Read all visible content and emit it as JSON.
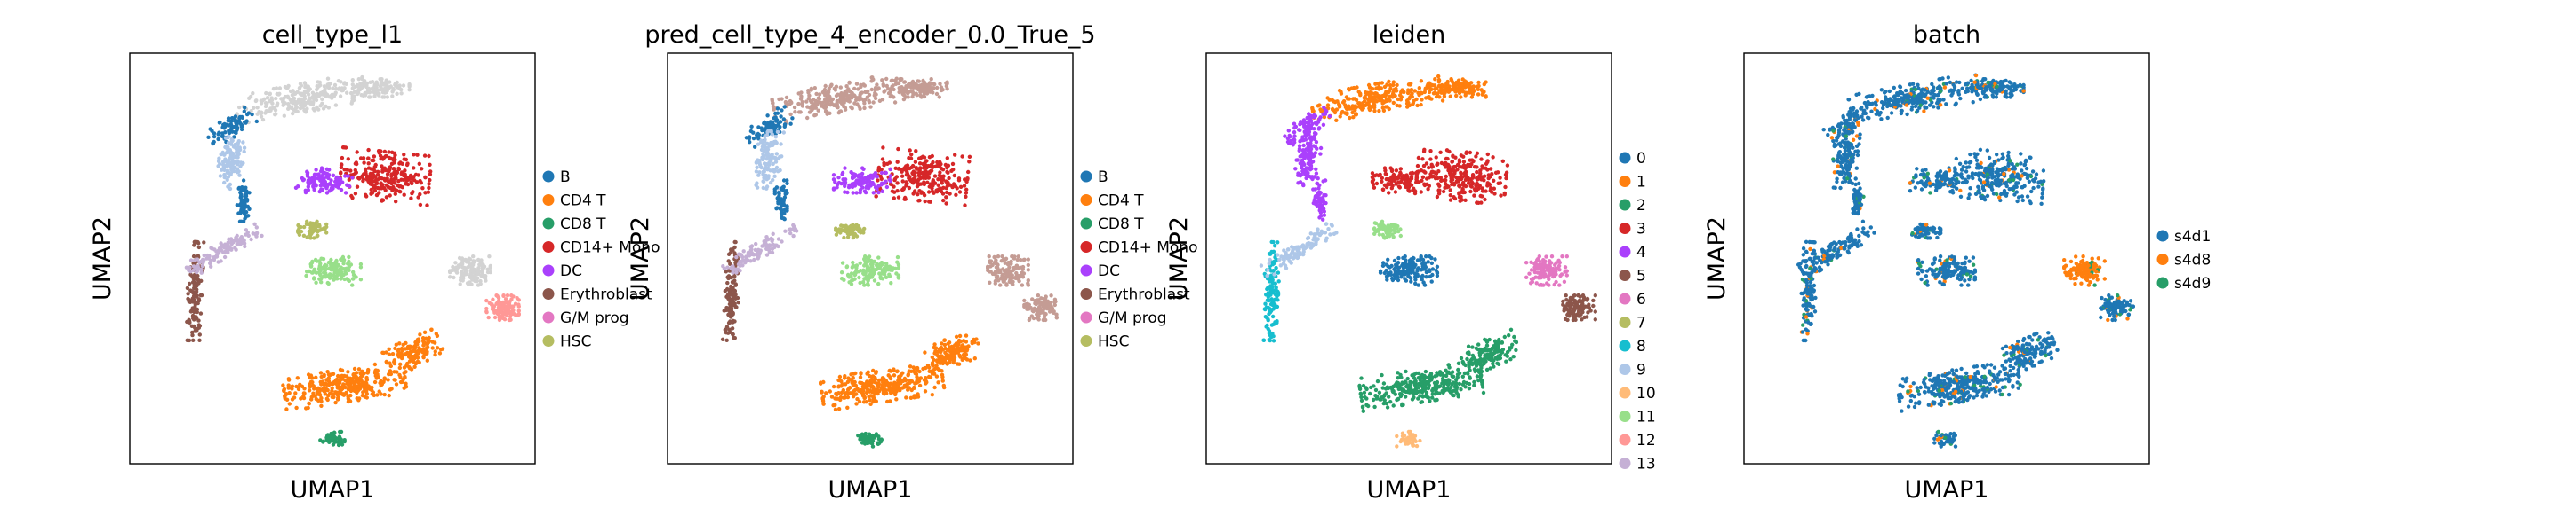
{
  "figure": {
    "background": "#ffffff"
  },
  "chart_data": [
    {
      "type": "scatter",
      "title": "cell_type_l1",
      "xlabel": "UMAP1",
      "ylabel": "UMAP2",
      "legend": [
        {
          "label": "B",
          "color": "#1f77b4"
        },
        {
          "label": "CD4 T",
          "color": "#ff7f0e"
        },
        {
          "label": "CD8 T",
          "color": "#279e68"
        },
        {
          "label": "CD14+ Mono",
          "color": "#d62728"
        },
        {
          "label": "DC",
          "color": "#aa40fc"
        },
        {
          "label": "Erythroblast",
          "color": "#8c564b"
        },
        {
          "label": "G/M prog",
          "color": "#e377c2"
        },
        {
          "label": "HSC",
          "color": "#b5bd61"
        }
      ],
      "unassigned_color": "#d3d3d3",
      "legend_placement": "right",
      "grid": false,
      "ticks": false
    },
    {
      "type": "scatter",
      "title": "pred_cell_type_4_encoder_0.0_True_5",
      "xlabel": "UMAP1",
      "ylabel": "UMAP2",
      "legend": [
        {
          "label": "B",
          "color": "#1f77b4"
        },
        {
          "label": "CD4 T",
          "color": "#ff7f0e"
        },
        {
          "label": "CD8 T",
          "color": "#279e68"
        },
        {
          "label": "CD14+ Mono",
          "color": "#d62728"
        },
        {
          "label": "DC",
          "color": "#aa40fc"
        },
        {
          "label": "Erythroblast",
          "color": "#8c564b"
        },
        {
          "label": "G/M prog",
          "color": "#e377c2"
        },
        {
          "label": "HSC",
          "color": "#b5bd61"
        }
      ],
      "legend_placement": "right",
      "grid": false,
      "ticks": false
    },
    {
      "type": "scatter",
      "title": "leiden",
      "xlabel": "UMAP1",
      "ylabel": "UMAP2",
      "legend": [
        {
          "label": "0",
          "color": "#1f77b4"
        },
        {
          "label": "1",
          "color": "#ff7f0e"
        },
        {
          "label": "2",
          "color": "#279e68"
        },
        {
          "label": "3",
          "color": "#d62728"
        },
        {
          "label": "4",
          "color": "#aa40fc"
        },
        {
          "label": "5",
          "color": "#8c564b"
        },
        {
          "label": "6",
          "color": "#e377c2"
        },
        {
          "label": "7",
          "color": "#b5bd61"
        },
        {
          "label": "8",
          "color": "#17becf"
        },
        {
          "label": "9",
          "color": "#aec7e8"
        },
        {
          "label": "10",
          "color": "#ffbb78"
        },
        {
          "label": "11",
          "color": "#98df8a"
        },
        {
          "label": "12",
          "color": "#ff9896"
        },
        {
          "label": "13",
          "color": "#c5b0d5"
        }
      ],
      "legend_placement": "right",
      "grid": false,
      "ticks": false
    },
    {
      "type": "scatter",
      "title": "batch",
      "xlabel": "UMAP1",
      "ylabel": "UMAP2",
      "legend": [
        {
          "label": "s4d1",
          "color": "#1f77b4"
        },
        {
          "label": "s4d8",
          "color": "#ff7f0e"
        },
        {
          "label": "s4d9",
          "color": "#279e68"
        }
      ],
      "legend_placement": "right",
      "grid": false,
      "ticks": false
    }
  ]
}
